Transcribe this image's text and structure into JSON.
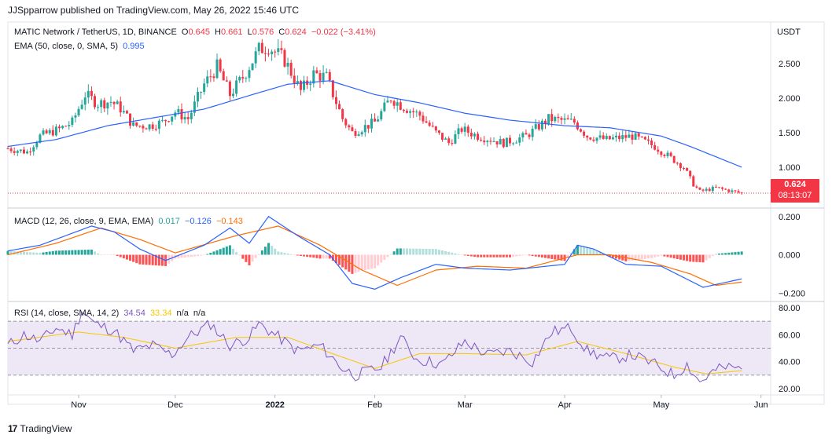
{
  "header": {
    "published": "JJSpparrow published on TradingView.com, May 26, 2022 15:46 UTC"
  },
  "price_legend": {
    "symbol": "MATIC Network / TetherUS, 1D, BINANCE",
    "o_label": "O",
    "o": "0.645",
    "h_label": "H",
    "h": "0.661",
    "l_label": "L",
    "l": "0.576",
    "c_label": "C",
    "c": "0.624",
    "chg": "−0.022 (−3.41%)"
  },
  "ema_legend": {
    "label": "EMA (50, close, 0, SMA, 5)",
    "value": "0.995"
  },
  "macd_legend": {
    "label": "MACD (12, 26, close, 9, EMA, EMA)",
    "hist": "0.017",
    "macd": "−0.126",
    "signal": "−0.143"
  },
  "rsi_legend": {
    "label": "RSI (14, close, SMA, 14, 2)",
    "rsi": "34.54",
    "ma": "33.34",
    "na1": "n/a",
    "na2": "n/a"
  },
  "price_box": {
    "price": "0.624",
    "countdown": "08:13:07"
  },
  "brand": {
    "name": "TradingView"
  },
  "colors": {
    "up": "#26a69a",
    "down": "#f23645",
    "ema": "#2962ff",
    "macd": "#2962ff",
    "signal": "#ff6d00",
    "rsi": "#7e57c2",
    "rsi_ma": "#f7c600",
    "rsi_band": "#ede7f6"
  },
  "chart_data": [
    {
      "type": "candlestick",
      "title": "MATIC Network / TetherUS, 1D, BINANCE",
      "y_unit": "USDT",
      "y_ticks": [
        "2.500",
        "2.000",
        "1.500",
        "1.000"
      ],
      "ylim": [
        0.42,
        3.1
      ],
      "x_ticks": [
        "Nov",
        "Dec",
        "2022",
        "Feb",
        "Mar",
        "Apr",
        "May",
        "Jun"
      ],
      "x_tick_dates": [
        "2021-11-01",
        "2021-12-01",
        "2022-01-01",
        "2022-02-01",
        "2022-03-01",
        "2022-04-01",
        "2022-05-01",
        "2022-06-01"
      ],
      "x_range": [
        "2021-10-10",
        "2022-06-04"
      ],
      "close_anchors": [
        [
          "2021-10-10",
          1.27
        ],
        [
          "2021-10-16",
          1.22
        ],
        [
          "2021-10-20",
          1.45
        ],
        [
          "2021-10-26",
          1.55
        ],
        [
          "2021-10-30",
          1.65
        ],
        [
          "2021-11-03",
          2.05
        ],
        [
          "2021-11-07",
          1.92
        ],
        [
          "2021-11-11",
          1.95
        ],
        [
          "2021-11-14",
          1.85
        ],
        [
          "2021-11-18",
          1.6
        ],
        [
          "2021-11-23",
          1.6
        ],
        [
          "2021-11-27",
          1.65
        ],
        [
          "2021-12-01",
          1.8
        ],
        [
          "2021-12-05",
          1.7
        ],
        [
          "2021-12-10",
          2.2
        ],
        [
          "2021-12-14",
          2.45
        ],
        [
          "2021-12-18",
          2.05
        ],
        [
          "2021-12-22",
          2.3
        ],
        [
          "2021-12-27",
          2.7
        ],
        [
          "2021-12-30",
          2.75
        ],
        [
          "2022-01-04",
          2.55
        ],
        [
          "2022-01-09",
          2.1
        ],
        [
          "2022-01-13",
          2.35
        ],
        [
          "2022-01-17",
          2.3
        ],
        [
          "2022-01-22",
          1.7
        ],
        [
          "2022-01-25",
          1.5
        ],
        [
          "2022-02-01",
          1.65
        ],
        [
          "2022-02-06",
          2.0
        ],
        [
          "2022-02-09",
          1.9
        ],
        [
          "2022-02-15",
          1.75
        ],
        [
          "2022-02-20",
          1.5
        ],
        [
          "2022-02-24",
          1.35
        ],
        [
          "2022-02-28",
          1.55
        ],
        [
          "2022-03-05",
          1.45
        ],
        [
          "2022-03-13",
          1.35
        ],
        [
          "2022-03-20",
          1.45
        ],
        [
          "2022-03-27",
          1.7
        ],
        [
          "2022-04-04",
          1.65
        ],
        [
          "2022-04-08",
          1.45
        ],
        [
          "2022-04-14",
          1.4
        ],
        [
          "2022-04-22",
          1.45
        ],
        [
          "2022-04-29",
          1.3
        ],
        [
          "2022-05-05",
          1.1
        ],
        [
          "2022-05-08",
          1.0
        ],
        [
          "2022-05-11",
          0.75
        ],
        [
          "2022-05-13",
          0.65
        ],
        [
          "2022-05-18",
          0.7
        ],
        [
          "2022-05-26",
          0.624
        ]
      ],
      "ema_label": "EMA (50, close, 0, SMA, 5)",
      "ema_anchors": [
        [
          "2021-10-10",
          1.3
        ],
        [
          "2021-10-25",
          1.4
        ],
        [
          "2021-11-10",
          1.6
        ],
        [
          "2021-11-25",
          1.72
        ],
        [
          "2021-12-10",
          1.84
        ],
        [
          "2021-12-25",
          2.05
        ],
        [
          "2022-01-05",
          2.2
        ],
        [
          "2022-01-18",
          2.25
        ],
        [
          "2022-02-01",
          2.05
        ],
        [
          "2022-02-15",
          1.93
        ],
        [
          "2022-03-01",
          1.78
        ],
        [
          "2022-03-15",
          1.68
        ],
        [
          "2022-04-01",
          1.6
        ],
        [
          "2022-04-15",
          1.57
        ],
        [
          "2022-05-01",
          1.45
        ],
        [
          "2022-05-10",
          1.3
        ],
        [
          "2022-05-26",
          1.0
        ]
      ],
      "last_price": 0.624
    },
    {
      "type": "macd",
      "title": "MACD (12, 26, close, 9, EMA, EMA)",
      "y_ticks": [
        "0.200",
        "0.000",
        "−0.200"
      ],
      "ylim": [
        -0.24,
        0.24
      ],
      "series": [
        {
          "name": "MACD",
          "anchors": [
            [
              "2021-10-10",
              0.02
            ],
            [
              "2021-10-20",
              0.05
            ],
            [
              "2021-11-05",
              0.15
            ],
            [
              "2021-11-12",
              0.12
            ],
            [
              "2021-11-20",
              0.03
            ],
            [
              "2021-11-28",
              -0.03
            ],
            [
              "2021-12-10",
              0.05
            ],
            [
              "2021-12-18",
              0.14
            ],
            [
              "2021-12-24",
              0.06
            ],
            [
              "2021-12-30",
              0.2
            ],
            [
              "2022-01-08",
              0.1
            ],
            [
              "2022-01-18",
              0.0
            ],
            [
              "2022-01-25",
              -0.15
            ],
            [
              "2022-02-01",
              -0.18
            ],
            [
              "2022-02-09",
              -0.12
            ],
            [
              "2022-02-20",
              -0.05
            ],
            [
              "2022-03-01",
              -0.07
            ],
            [
              "2022-03-15",
              -0.08
            ],
            [
              "2022-04-01",
              -0.05
            ],
            [
              "2022-04-05",
              0.05
            ],
            [
              "2022-04-10",
              0.03
            ],
            [
              "2022-04-20",
              -0.05
            ],
            [
              "2022-05-01",
              -0.06
            ],
            [
              "2022-05-14",
              -0.17
            ],
            [
              "2022-05-26",
              -0.126
            ]
          ]
        },
        {
          "name": "Signal",
          "anchors": [
            [
              "2021-10-10",
              0.0
            ],
            [
              "2021-10-25",
              0.06
            ],
            [
              "2021-11-08",
              0.14
            ],
            [
              "2021-11-20",
              0.08
            ],
            [
              "2021-12-01",
              0.01
            ],
            [
              "2021-12-20",
              0.1
            ],
            [
              "2022-01-02",
              0.15
            ],
            [
              "2022-01-15",
              0.05
            ],
            [
              "2022-01-28",
              -0.08
            ],
            [
              "2022-02-08",
              -0.16
            ],
            [
              "2022-02-20",
              -0.08
            ],
            [
              "2022-03-05",
              -0.06
            ],
            [
              "2022-03-20",
              -0.07
            ],
            [
              "2022-04-05",
              0.0
            ],
            [
              "2022-04-15",
              0.0
            ],
            [
              "2022-04-28",
              -0.04
            ],
            [
              "2022-05-10",
              -0.1
            ],
            [
              "2022-05-18",
              -0.16
            ],
            [
              "2022-05-26",
              -0.143
            ]
          ]
        },
        {
          "name": "Histogram",
          "note": "MACD minus Signal"
        }
      ]
    },
    {
      "type": "line",
      "title": "RSI (14, close, SMA, 14, 2)",
      "y_ticks": [
        "80.00",
        "60.00",
        "40.00",
        "20.00"
      ],
      "ylim": [
        16,
        84
      ],
      "bands": [
        70,
        50,
        30
      ],
      "series": [
        {
          "name": "RSI",
          "anchors": [
            [
              "2021-10-10",
              52
            ],
            [
              "2021-10-15",
              60
            ],
            [
              "2021-10-20",
              55
            ],
            [
              "2021-10-25",
              65
            ],
            [
              "2021-10-30",
              60
            ],
            [
              "2021-11-02",
              78
            ],
            [
              "2021-11-06",
              68
            ],
            [
              "2021-11-12",
              63
            ],
            [
              "2021-11-18",
              48
            ],
            [
              "2021-11-24",
              52
            ],
            [
              "2021-11-30",
              45
            ],
            [
              "2021-12-05",
              58
            ],
            [
              "2021-12-12",
              68
            ],
            [
              "2021-12-18",
              52
            ],
            [
              "2021-12-24",
              58
            ],
            [
              "2021-12-27",
              68
            ],
            [
              "2022-01-01",
              60
            ],
            [
              "2022-01-08",
              48
            ],
            [
              "2022-01-15",
              52
            ],
            [
              "2022-01-22",
              35
            ],
            [
              "2022-01-26",
              30
            ],
            [
              "2022-02-03",
              36
            ],
            [
              "2022-02-09",
              58
            ],
            [
              "2022-02-14",
              42
            ],
            [
              "2022-02-22",
              38
            ],
            [
              "2022-03-01",
              55
            ],
            [
              "2022-03-08",
              45
            ],
            [
              "2022-03-15",
              48
            ],
            [
              "2022-03-22",
              40
            ],
            [
              "2022-03-28",
              62
            ],
            [
              "2022-04-03",
              65
            ],
            [
              "2022-04-08",
              48
            ],
            [
              "2022-04-15",
              42
            ],
            [
              "2022-04-22",
              45
            ],
            [
              "2022-04-29",
              38
            ],
            [
              "2022-05-05",
              30
            ],
            [
              "2022-05-09",
              38
            ],
            [
              "2022-05-13",
              25
            ],
            [
              "2022-05-18",
              34
            ],
            [
              "2022-05-22",
              36
            ],
            [
              "2022-05-26",
              34.54
            ]
          ]
        },
        {
          "name": "RSI-based MA",
          "anchors": [
            [
              "2021-10-10",
              55
            ],
            [
              "2021-11-01",
              62
            ],
            [
              "2021-11-15",
              58
            ],
            [
              "2021-12-01",
              50
            ],
            [
              "2021-12-20",
              58
            ],
            [
              "2022-01-05",
              58
            ],
            [
              "2022-01-20",
              45
            ],
            [
              "2022-02-01",
              35
            ],
            [
              "2022-02-15",
              46
            ],
            [
              "2022-03-01",
              46
            ],
            [
              "2022-03-20",
              45
            ],
            [
              "2022-04-05",
              55
            ],
            [
              "2022-04-20",
              46
            ],
            [
              "2022-05-05",
              36
            ],
            [
              "2022-05-15",
              31
            ],
            [
              "2022-05-26",
              33.34
            ]
          ]
        }
      ]
    }
  ]
}
